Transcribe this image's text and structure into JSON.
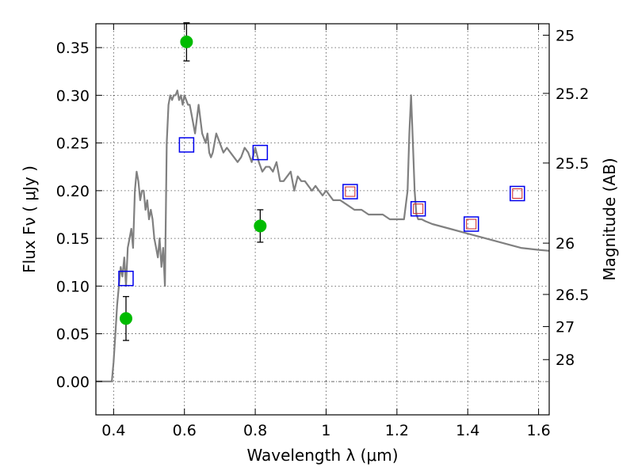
{
  "chart_data": {
    "type": "scatter",
    "title": "",
    "xlabel": "Wavelength  λ (μm)",
    "ylabel": "Flux  Fν  ( μJy )",
    "y2label": "Magnitude (AB)",
    "xlim": [
      0.35,
      1.63
    ],
    "ylim": [
      -0.035,
      0.375
    ],
    "grid": true,
    "legend": "none",
    "x_ticks": [
      {
        "value": 0.4,
        "label": "0.4"
      },
      {
        "value": 0.6,
        "label": "0.6"
      },
      {
        "value": 0.8,
        "label": "0.8"
      },
      {
        "value": 1.0,
        "label": "1"
      },
      {
        "value": 1.2,
        "label": "1.2"
      },
      {
        "value": 1.4,
        "label": "1.4"
      },
      {
        "value": 1.6,
        "label": "1.6"
      }
    ],
    "y_ticks": [
      {
        "value": 0.0,
        "label": "0.00"
      },
      {
        "value": 0.05,
        "label": "0.05"
      },
      {
        "value": 0.1,
        "label": "0.10"
      },
      {
        "value": 0.15,
        "label": "0.15"
      },
      {
        "value": 0.2,
        "label": "0.20"
      },
      {
        "value": 0.25,
        "label": "0.25"
      },
      {
        "value": 0.3,
        "label": "0.30"
      },
      {
        "value": 0.35,
        "label": "0.35"
      }
    ],
    "y2_ticks": [
      {
        "flux": 0.363,
        "label": "25"
      },
      {
        "flux": 0.302,
        "label": "25.2"
      },
      {
        "flux": 0.229,
        "label": "25.5"
      },
      {
        "flux": 0.145,
        "label": "26"
      },
      {
        "flux": 0.0912,
        "label": "26.5"
      },
      {
        "flux": 0.0575,
        "label": "27"
      },
      {
        "flux": 0.0229,
        "label": "28"
      }
    ],
    "colors": {
      "model_line": "#808080",
      "observed_point": "#00bb00",
      "model_square": "#0000ee",
      "model_square_inner": "#cc2222",
      "error_bar": "#000000"
    },
    "model_spectrum": {
      "x": [
        0.35,
        0.395,
        0.4,
        0.405,
        0.41,
        0.415,
        0.42,
        0.425,
        0.43,
        0.435,
        0.44,
        0.445,
        0.45,
        0.455,
        0.46,
        0.465,
        0.47,
        0.475,
        0.48,
        0.485,
        0.49,
        0.495,
        0.5,
        0.505,
        0.51,
        0.515,
        0.52,
        0.525,
        0.53,
        0.535,
        0.54,
        0.545,
        0.55,
        0.555,
        0.56,
        0.565,
        0.57,
        0.575,
        0.58,
        0.585,
        0.59,
        0.595,
        0.6,
        0.605,
        0.61,
        0.615,
        0.62,
        0.625,
        0.63,
        0.64,
        0.65,
        0.655,
        0.66,
        0.665,
        0.67,
        0.675,
        0.68,
        0.69,
        0.7,
        0.71,
        0.72,
        0.73,
        0.74,
        0.75,
        0.76,
        0.77,
        0.78,
        0.79,
        0.8,
        0.81,
        0.82,
        0.83,
        0.84,
        0.85,
        0.86,
        0.87,
        0.88,
        0.89,
        0.9,
        0.91,
        0.92,
        0.93,
        0.94,
        0.95,
        0.96,
        0.97,
        0.98,
        0.99,
        1.0,
        1.02,
        1.04,
        1.06,
        1.08,
        1.1,
        1.12,
        1.14,
        1.16,
        1.18,
        1.2,
        1.22,
        1.23,
        1.235,
        1.24,
        1.245,
        1.25,
        1.255,
        1.26,
        1.27,
        1.28,
        1.3,
        1.35,
        1.4,
        1.45,
        1.5,
        1.55,
        1.6,
        1.63
      ],
      "y": [
        0.0,
        0.0,
        0.02,
        0.05,
        0.08,
        0.1,
        0.12,
        0.11,
        0.13,
        0.1,
        0.14,
        0.15,
        0.16,
        0.14,
        0.2,
        0.22,
        0.21,
        0.19,
        0.2,
        0.2,
        0.18,
        0.19,
        0.17,
        0.18,
        0.17,
        0.15,
        0.14,
        0.13,
        0.15,
        0.12,
        0.14,
        0.1,
        0.25,
        0.29,
        0.3,
        0.295,
        0.3,
        0.3,
        0.305,
        0.295,
        0.3,
        0.29,
        0.3,
        0.295,
        0.29,
        0.29,
        0.28,
        0.27,
        0.26,
        0.29,
        0.26,
        0.255,
        0.25,
        0.26,
        0.24,
        0.235,
        0.24,
        0.26,
        0.25,
        0.24,
        0.245,
        0.24,
        0.235,
        0.23,
        0.235,
        0.245,
        0.24,
        0.23,
        0.245,
        0.23,
        0.22,
        0.225,
        0.225,
        0.22,
        0.23,
        0.21,
        0.21,
        0.215,
        0.22,
        0.2,
        0.215,
        0.21,
        0.21,
        0.205,
        0.2,
        0.205,
        0.2,
        0.195,
        0.2,
        0.19,
        0.19,
        0.185,
        0.18,
        0.18,
        0.175,
        0.175,
        0.175,
        0.17,
        0.17,
        0.17,
        0.2,
        0.26,
        0.3,
        0.25,
        0.2,
        0.175,
        0.17,
        0.17,
        0.168,
        0.165,
        0.16,
        0.155,
        0.15,
        0.145,
        0.14,
        0.138,
        0.137
      ]
    },
    "observed": [
      {
        "x": 0.435,
        "y": 0.066,
        "err": 0.023
      },
      {
        "x": 0.606,
        "y": 0.356,
        "err": 0.02
      },
      {
        "x": 0.814,
        "y": 0.163,
        "err": 0.017
      }
    ],
    "model_points": [
      {
        "x": 0.435,
        "y": 0.108,
        "inner": false
      },
      {
        "x": 0.606,
        "y": 0.248,
        "inner": false
      },
      {
        "x": 0.814,
        "y": 0.24,
        "inner": false
      },
      {
        "x": 1.068,
        "y": 0.199,
        "inner": true
      },
      {
        "x": 1.26,
        "y": 0.181,
        "inner": true
      },
      {
        "x": 1.41,
        "y": 0.165,
        "inner": true
      },
      {
        "x": 1.54,
        "y": 0.197,
        "inner": true
      }
    ]
  }
}
